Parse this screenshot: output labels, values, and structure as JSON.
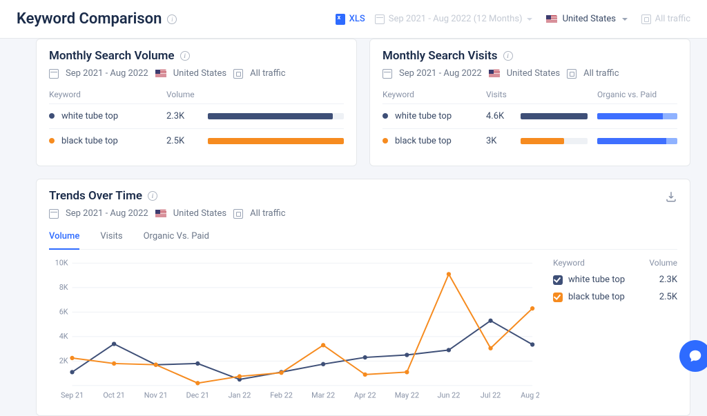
{
  "topbar": {
    "title": "Keyword Comparison",
    "xls_label": "XLS",
    "date_range_disabled": "Sep 2021 - Aug 2022 (12 Months)",
    "country": "United States",
    "all_traffic_disabled": "All traffic"
  },
  "colors": {
    "series0": "#3e4f77",
    "series1": "#f68b1f",
    "ovp_organic": "#3e6fff",
    "ovp_paid": "#8fb2ff",
    "bar_track": "#eef1f5",
    "text_muted": "#8892a6"
  },
  "volume_card": {
    "title": "Monthly Search Volume",
    "date_range": "Sep 2021 - Aug 2022",
    "country": "United States",
    "traffic": "All traffic",
    "columns": {
      "keyword": "Keyword",
      "volume": "Volume"
    },
    "rows": [
      {
        "keyword": "white tube top",
        "value": "2.3K",
        "bar_pct": 92,
        "color": "#3e4f77"
      },
      {
        "keyword": "black tube top",
        "value": "2.5K",
        "bar_pct": 100,
        "color": "#f68b1f"
      }
    ]
  },
  "visits_card": {
    "title": "Monthly Search Visits",
    "date_range": "Sep 2021 - Aug 2022",
    "country": "United States",
    "traffic": "All traffic",
    "columns": {
      "keyword": "Keyword",
      "visits": "Visits",
      "ovp": "Organic vs. Paid"
    },
    "rows": [
      {
        "keyword": "white tube top",
        "value": "4.6K",
        "bar_pct": 100,
        "color": "#3e4f77",
        "organic_pct": 82,
        "paid_pct": 18
      },
      {
        "keyword": "black tube top",
        "value": "3K",
        "bar_pct": 65,
        "color": "#f68b1f",
        "organic_pct": 86,
        "paid_pct": 14
      }
    ]
  },
  "trends": {
    "title": "Trends Over Time",
    "date_range": "Sep 2021 - Aug 2022",
    "country": "United States",
    "traffic": "All traffic",
    "tabs": [
      "Volume",
      "Visits",
      "Organic Vs. Paid"
    ],
    "active_tab": 0,
    "y_ticks": [
      0,
      "2K",
      "4K",
      "6K",
      "8K",
      "10K"
    ],
    "y_max": 10000,
    "x_labels": [
      "Sep 21",
      "Oct 21",
      "Nov 21",
      "Dec 21",
      "Jan 22",
      "Feb 22",
      "Mar 22",
      "Apr 22",
      "May 22",
      "Jun 22",
      "Jul 22",
      "Aug 22"
    ],
    "legend": {
      "keyword_header": "Keyword",
      "value_header": "Volume",
      "items": [
        {
          "name": "white tube top",
          "value": "2.3K",
          "color": "#3e4f77"
        },
        {
          "name": "black tube top",
          "value": "2.5K",
          "color": "#f68b1f"
        }
      ]
    },
    "series": [
      {
        "color": "#3e4f77",
        "values": [
          1100,
          3400,
          1700,
          1800,
          500,
          1100,
          1750,
          2300,
          2500,
          2900,
          5300,
          3350
        ]
      },
      {
        "color": "#f68b1f",
        "values": [
          2250,
          1800,
          1700,
          200,
          750,
          1050,
          3300,
          900,
          1100,
          9100,
          3050,
          6300
        ]
      }
    ]
  }
}
